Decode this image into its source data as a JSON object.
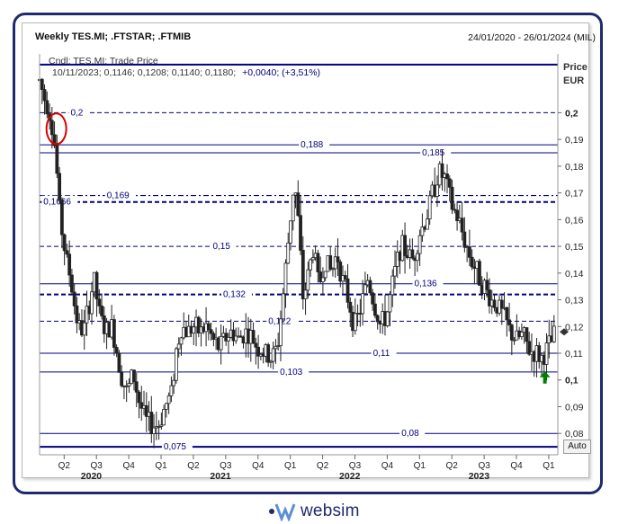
{
  "header": {
    "title": "Weekly TES.MI; .FTSTAR; .FTMIB",
    "date_range": "24/01/2020 - 26/01/2024 (MIL)"
  },
  "legend": {
    "line1": "Cndl; TES.MI; Trade Price",
    "line2_prefix": "10/11/2023; 0,1146; 0,1208; 0,1140; 0,1180;",
    "line2_change": "+0,0040; (+3,51%)"
  },
  "price_axis": {
    "label_line1": "Price",
    "label_line2": "EUR"
  },
  "auto_button": {
    "label": "Auto"
  },
  "logo": {
    "text": "websim"
  },
  "colors": {
    "navy": "#000080",
    "frame": "#1e2a6e",
    "candle": "#222222",
    "arrow": "#008000",
    "circle": "#dd0000"
  },
  "chart_data": {
    "type": "candlestick",
    "title": "Weekly TES.MI; .FTSTAR; .FTMIB",
    "ylabel": "Price EUR",
    "ylim": [
      0.072,
      0.222
    ],
    "x_start": 2020.06,
    "x_end": 2024.07,
    "y_ticks": [
      {
        "v": 0.09,
        "label": "0,09"
      },
      {
        "v": 0.1,
        "label": "0,1",
        "bold": true
      },
      {
        "v": 0.11,
        "label": "0,11"
      },
      {
        "v": 0.12,
        "label": "0,12"
      },
      {
        "v": 0.13,
        "label": "0,13"
      },
      {
        "v": 0.14,
        "label": "0,14"
      },
      {
        "v": 0.15,
        "label": "0,15"
      },
      {
        "v": 0.16,
        "label": "0,16"
      },
      {
        "v": 0.17,
        "label": "0,17"
      },
      {
        "v": 0.18,
        "label": "0,18"
      },
      {
        "v": 0.19,
        "label": "0,19"
      },
      {
        "v": 0.2,
        "label": "0,2",
        "bold": true
      },
      {
        "v": 0.08,
        "label": "0,08"
      }
    ],
    "quarter_ticks": [
      {
        "x": 2020.25,
        "label": "Q2"
      },
      {
        "x": 2020.5,
        "label": "Q3"
      },
      {
        "x": 2020.75,
        "label": "Q4"
      },
      {
        "x": 2021.0,
        "label": "Q1"
      },
      {
        "x": 2021.25,
        "label": "Q2"
      },
      {
        "x": 2021.5,
        "label": "Q3"
      },
      {
        "x": 2021.75,
        "label": "Q4"
      },
      {
        "x": 2022.0,
        "label": "Q1"
      },
      {
        "x": 2022.25,
        "label": "Q2"
      },
      {
        "x": 2022.5,
        "label": "Q3"
      },
      {
        "x": 2022.75,
        "label": "Q4"
      },
      {
        "x": 2023.0,
        "label": "Q1"
      },
      {
        "x": 2023.25,
        "label": "Q2"
      },
      {
        "x": 2023.5,
        "label": "Q3"
      },
      {
        "x": 2023.75,
        "label": "Q4"
      },
      {
        "x": 2024.0,
        "label": "Q1"
      }
    ],
    "year_labels": [
      {
        "x": 2020.46,
        "label": "2020"
      },
      {
        "x": 2021.46,
        "label": "2021"
      },
      {
        "x": 2022.46,
        "label": "2022"
      },
      {
        "x": 2023.46,
        "label": "2023"
      }
    ],
    "levels": [
      {
        "value": 0.2,
        "label": "0,2",
        "style": "dash",
        "width": 1,
        "label_x": 2020.3,
        "x_from": 2020.06
      },
      {
        "value": 0.188,
        "label": "0,188",
        "style": "solid",
        "width": 1,
        "label_x": 2022.08,
        "x_from": 2020.06
      },
      {
        "value": 0.185,
        "label": "0,185",
        "style": "solid",
        "width": 1,
        "label_x": 2023.02,
        "x_from": 2020.06
      },
      {
        "value": 0.169,
        "label": "0,169",
        "style": "dashdot",
        "width": 1.2,
        "label_x": 2020.58,
        "x_from": 2020.06
      },
      {
        "value": 0.1666,
        "label": "0,1666",
        "style": "dash",
        "width": 2,
        "label_x": 2020.09,
        "x_from": 2020.06
      },
      {
        "value": 0.15,
        "label": "0,15",
        "style": "dash",
        "width": 1,
        "label_x": 2021.4,
        "x_from": 2020.06
      },
      {
        "value": 0.136,
        "label": "0,136",
        "style": "solid",
        "width": 1,
        "label_x": 2022.96,
        "x_from": 2020.06
      },
      {
        "value": 0.132,
        "label": "0,132",
        "style": "dash",
        "width": 2,
        "label_x": 2021.48,
        "x_from": 2020.06
      },
      {
        "value": 0.122,
        "label": "0,122",
        "style": "dash",
        "width": 1,
        "label_x": 2021.83,
        "x_from": 2020.06
      },
      {
        "value": 0.11,
        "label": "0,11",
        "style": "solid",
        "width": 1,
        "label_x": 2022.64,
        "x_from": 2020.06
      },
      {
        "value": 0.103,
        "label": "0,103",
        "style": "solid",
        "width": 1,
        "label_x": 2021.92,
        "x_from": 2020.06
      },
      {
        "value": 0.08,
        "label": "0,08",
        "style": "solid",
        "width": 1,
        "label_x": 2022.86,
        "x_from": 2020.06
      },
      {
        "value": 0.075,
        "label": "0,075",
        "style": "solid",
        "width": 2,
        "label_x": 2021.02,
        "x_from": 2020.06
      },
      {
        "value": 0.218,
        "label": "",
        "style": "solid",
        "width": 2,
        "label_x": 2020.1,
        "x_from": 2020.06
      }
    ],
    "last_price": 0.118,
    "arrow_at": {
      "x": 2023.97,
      "y": 0.1
    },
    "circle_at": {
      "x": 2020.19,
      "y": 0.194
    },
    "price_path": [
      [
        2020.06,
        0.212
      ],
      [
        2020.1,
        0.205
      ],
      [
        2020.13,
        0.202
      ],
      [
        2020.17,
        0.191
      ],
      [
        2020.19,
        0.18
      ],
      [
        2020.22,
        0.16
      ],
      [
        2020.26,
        0.147
      ],
      [
        2020.3,
        0.138
      ],
      [
        2020.33,
        0.128
      ],
      [
        2020.36,
        0.12
      ],
      [
        2020.4,
        0.118
      ],
      [
        2020.45,
        0.13
      ],
      [
        2020.48,
        0.138
      ],
      [
        2020.52,
        0.125
      ],
      [
        2020.57,
        0.118
      ],
      [
        2020.62,
        0.12
      ],
      [
        2020.66,
        0.11
      ],
      [
        2020.7,
        0.1
      ],
      [
        2020.74,
        0.095
      ],
      [
        2020.78,
        0.103
      ],
      [
        2020.83,
        0.092
      ],
      [
        2020.88,
        0.085
      ],
      [
        2020.93,
        0.083
      ],
      [
        2020.98,
        0.083
      ],
      [
        2021.03,
        0.09
      ],
      [
        2021.08,
        0.095
      ],
      [
        2021.12,
        0.112
      ],
      [
        2021.16,
        0.12
      ],
      [
        2021.2,
        0.118
      ],
      [
        2021.25,
        0.12
      ],
      [
        2021.3,
        0.118
      ],
      [
        2021.35,
        0.12
      ],
      [
        2021.4,
        0.115
      ],
      [
        2021.45,
        0.112
      ],
      [
        2021.5,
        0.116
      ],
      [
        2021.55,
        0.118
      ],
      [
        2021.6,
        0.115
      ],
      [
        2021.65,
        0.118
      ],
      [
        2021.7,
        0.116
      ],
      [
        2021.75,
        0.112
      ],
      [
        2021.8,
        0.11
      ],
      [
        2021.85,
        0.108
      ],
      [
        2021.9,
        0.112
      ],
      [
        2021.94,
        0.13
      ],
      [
        2021.98,
        0.15
      ],
      [
        2022.03,
        0.175
      ],
      [
        2022.06,
        0.16
      ],
      [
        2022.1,
        0.13
      ],
      [
        2022.14,
        0.14
      ],
      [
        2022.18,
        0.15
      ],
      [
        2022.22,
        0.135
      ],
      [
        2022.27,
        0.145
      ],
      [
        2022.32,
        0.14
      ],
      [
        2022.36,
        0.148
      ],
      [
        2022.4,
        0.138
      ],
      [
        2022.45,
        0.13
      ],
      [
        2022.5,
        0.12
      ],
      [
        2022.55,
        0.128
      ],
      [
        2022.6,
        0.138
      ],
      [
        2022.65,
        0.128
      ],
      [
        2022.7,
        0.12
      ],
      [
        2022.75,
        0.125
      ],
      [
        2022.8,
        0.138
      ],
      [
        2022.85,
        0.15
      ],
      [
        2022.9,
        0.148
      ],
      [
        2022.95,
        0.145
      ],
      [
        2023.0,
        0.155
      ],
      [
        2023.05,
        0.16
      ],
      [
        2023.1,
        0.17
      ],
      [
        2023.15,
        0.178
      ],
      [
        2023.2,
        0.175
      ],
      [
        2023.25,
        0.165
      ],
      [
        2023.3,
        0.16
      ],
      [
        2023.35,
        0.152
      ],
      [
        2023.4,
        0.145
      ],
      [
        2023.45,
        0.14
      ],
      [
        2023.5,
        0.135
      ],
      [
        2023.55,
        0.13
      ],
      [
        2023.6,
        0.128
      ],
      [
        2023.65,
        0.124
      ],
      [
        2023.7,
        0.118
      ],
      [
        2023.75,
        0.115
      ],
      [
        2023.8,
        0.117
      ],
      [
        2023.85,
        0.111
      ],
      [
        2023.9,
        0.11
      ],
      [
        2023.95,
        0.108
      ],
      [
        2023.99,
        0.112
      ],
      [
        2024.02,
        0.114
      ],
      [
        2024.05,
        0.118
      ]
    ]
  }
}
